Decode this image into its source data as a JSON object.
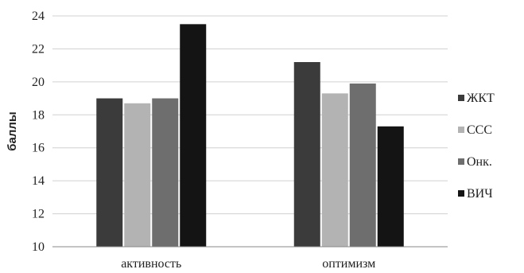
{
  "chart_data": {
    "type": "bar",
    "categories": [
      "активность",
      "оптимизм"
    ],
    "series": [
      {
        "name": "ЖКТ",
        "values": [
          19.0,
          21.2
        ],
        "color": "#3b3b3b"
      },
      {
        "name": "ССС",
        "values": [
          18.7,
          19.3
        ],
        "color": "#b3b3b3"
      },
      {
        "name": "Онк.",
        "values": [
          19.0,
          19.9
        ],
        "color": "#6e6e6e"
      },
      {
        "name": "ВИЧ",
        "values": [
          23.5,
          17.3
        ],
        "color": "#141414"
      }
    ],
    "ylabel": "баллы",
    "xlabel": "",
    "ylim": [
      10,
      24
    ],
    "yticks": [
      10,
      12,
      14,
      16,
      18,
      20,
      22,
      24
    ],
    "grid": true,
    "legend": "right"
  }
}
